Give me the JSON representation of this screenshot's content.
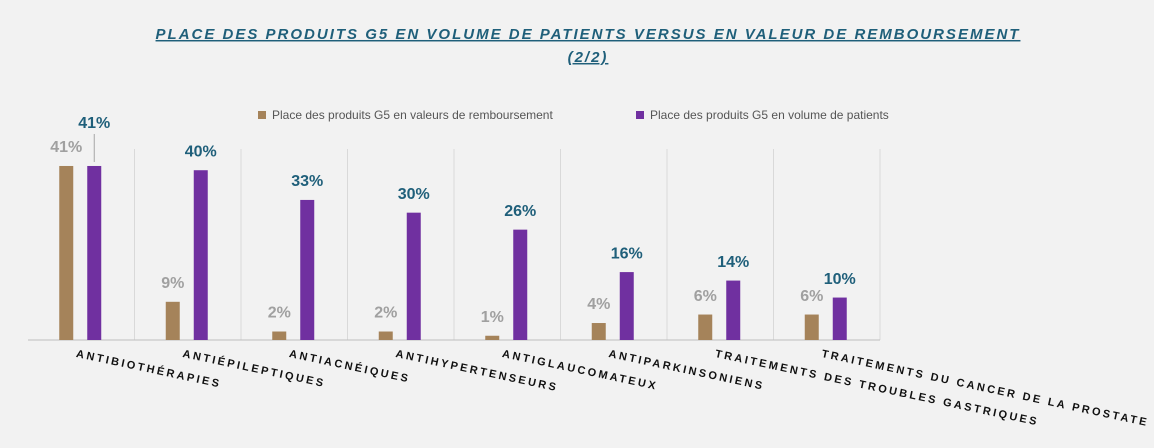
{
  "chart_data": {
    "type": "bar",
    "title": [
      "PLACE DES PRODUITS G5 EN VOLUME DE PATIENTS VERSUS EN VALEUR DE REMBOURSEMENT",
      "(2/2)"
    ],
    "categories": [
      "ANTIBIOTHÉRAPIES",
      "ANTIÉPILEPTIQUES",
      "ANTIACNÉIQUES",
      "ANTIHYPERTENSEURS",
      "ANTIGLAUCOMATEUX",
      "ANTIPARKINSONIENS",
      "TRAITEMENTS DES TROUBLES GASTRIQUES",
      "TRAITEMENTS DU CANCER DE LA PROSTATE"
    ],
    "series": [
      {
        "name": "Place des produits G5 en valeurs de remboursement",
        "color": "#a5835a",
        "values": [
          41,
          9,
          2,
          2,
          1,
          4,
          6,
          6
        ],
        "value_labels": [
          "41%",
          "9%",
          "2%",
          "2%",
          "1%",
          "4%",
          "6%",
          "6%"
        ]
      },
      {
        "name": "Place des produits G5 en volume de patients",
        "color": "#7030a0",
        "values": [
          41,
          40,
          33,
          30,
          26,
          16,
          14,
          10
        ],
        "value_labels": [
          "41%",
          "40%",
          "33%",
          "30%",
          "26%",
          "16%",
          "14%",
          "10%"
        ]
      }
    ],
    "ylim": [
      0,
      45
    ],
    "legend": "top"
  }
}
